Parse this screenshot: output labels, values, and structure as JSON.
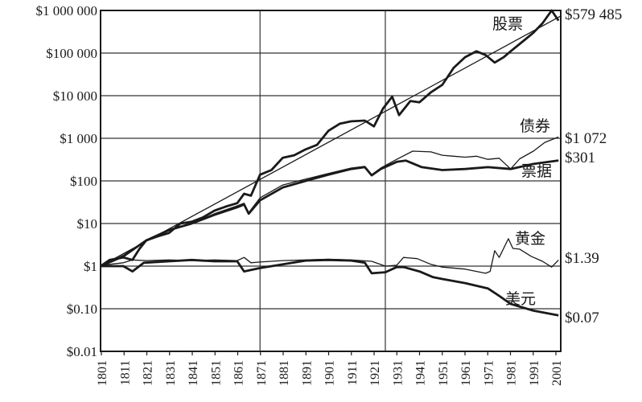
{
  "chart_data": {
    "type": "line",
    "title": "",
    "xlabel": "",
    "ylabel": "",
    "yscale": "log",
    "xlim": [
      1801,
      2003
    ],
    "ylim": [
      0.01,
      1000000
    ],
    "grid": {
      "horizontal": true,
      "vertical_years": [
        1871,
        1926
      ]
    },
    "x_tick_labels": [
      "1801",
      "1811",
      "1821",
      "1831",
      "1841",
      "1851",
      "1861",
      "1871",
      "1881",
      "1891",
      "1901",
      "1911",
      "1921",
      "1931",
      "1941",
      "1951",
      "1961",
      "1971",
      "1981",
      "1991",
      "2001"
    ],
    "y_ticks": [
      {
        "value": 1000000,
        "label": "$1 000 000"
      },
      {
        "value": 100000,
        "label": "$100 000"
      },
      {
        "value": 10000,
        "label": "$10 000"
      },
      {
        "value": 1000,
        "label": "$1 000"
      },
      {
        "value": 100,
        "label": "$100"
      },
      {
        "value": 10,
        "label": "$10"
      },
      {
        "value": 1,
        "label": "$1"
      },
      {
        "value": 0.1,
        "label": "$0.10"
      },
      {
        "value": 0.01,
        "label": "$0.01"
      }
    ],
    "series": [
      {
        "key": "stocks",
        "name": "股票",
        "end_label": "$579 485",
        "style": "thick",
        "points": [
          [
            1801,
            1
          ],
          [
            1805,
            1.4
          ],
          [
            1811,
            1.6
          ],
          [
            1815,
            1.4
          ],
          [
            1818,
            2.5
          ],
          [
            1821,
            4
          ],
          [
            1826,
            5
          ],
          [
            1831,
            6
          ],
          [
            1836,
            10
          ],
          [
            1841,
            11
          ],
          [
            1846,
            14
          ],
          [
            1851,
            20
          ],
          [
            1856,
            25
          ],
          [
            1861,
            30
          ],
          [
            1864,
            50
          ],
          [
            1867,
            45
          ],
          [
            1871,
            140
          ],
          [
            1876,
            180
          ],
          [
            1881,
            350
          ],
          [
            1886,
            400
          ],
          [
            1891,
            550
          ],
          [
            1896,
            700
          ],
          [
            1901,
            1500
          ],
          [
            1906,
            2200
          ],
          [
            1911,
            2500
          ],
          [
            1917,
            2600
          ],
          [
            1921,
            1900
          ],
          [
            1925,
            5000
          ],
          [
            1929,
            9500
          ],
          [
            1932,
            3500
          ],
          [
            1937,
            7500
          ],
          [
            1941,
            7000
          ],
          [
            1946,
            12000
          ],
          [
            1951,
            18000
          ],
          [
            1956,
            45000
          ],
          [
            1961,
            80000
          ],
          [
            1966,
            110000
          ],
          [
            1970,
            90000
          ],
          [
            1974,
            60000
          ],
          [
            1978,
            80000
          ],
          [
            1981,
            110000
          ],
          [
            1987,
            200000
          ],
          [
            1991,
            300000
          ],
          [
            1995,
            500000
          ],
          [
            1999,
            1000000
          ],
          [
            2002,
            579485
          ]
        ]
      },
      {
        "key": "trend",
        "name": "",
        "end_label": "",
        "style": "thin",
        "points": [
          [
            1801,
            1
          ],
          [
            2003,
            740000
          ]
        ]
      },
      {
        "key": "bonds",
        "name": "债券",
        "end_label": "$1 072",
        "style": "thin",
        "points": [
          [
            1801,
            1
          ],
          [
            1811,
            1.8
          ],
          [
            1821,
            4
          ],
          [
            1831,
            7
          ],
          [
            1841,
            10
          ],
          [
            1851,
            17
          ],
          [
            1861,
            26
          ],
          [
            1864,
            30
          ],
          [
            1866,
            18
          ],
          [
            1871,
            40
          ],
          [
            1881,
            80
          ],
          [
            1891,
            110
          ],
          [
            1901,
            150
          ],
          [
            1911,
            200
          ],
          [
            1917,
            220
          ],
          [
            1920,
            140
          ],
          [
            1924,
            200
          ],
          [
            1931,
            320
          ],
          [
            1938,
            500
          ],
          [
            1946,
            480
          ],
          [
            1951,
            400
          ],
          [
            1956,
            380
          ],
          [
            1961,
            360
          ],
          [
            1966,
            380
          ],
          [
            1971,
            320
          ],
          [
            1976,
            340
          ],
          [
            1981,
            190
          ],
          [
            1985,
            330
          ],
          [
            1991,
            500
          ],
          [
            1996,
            800
          ],
          [
            2002,
            1072
          ]
        ]
      },
      {
        "key": "bills",
        "name": "票据",
        "end_label": "$301",
        "style": "thick",
        "points": [
          [
            1801,
            1
          ],
          [
            1811,
            1.7
          ],
          [
            1821,
            4
          ],
          [
            1831,
            7
          ],
          [
            1841,
            10
          ],
          [
            1851,
            16
          ],
          [
            1861,
            24
          ],
          [
            1864,
            28
          ],
          [
            1866,
            17
          ],
          [
            1871,
            35
          ],
          [
            1881,
            70
          ],
          [
            1891,
            100
          ],
          [
            1901,
            140
          ],
          [
            1911,
            190
          ],
          [
            1917,
            210
          ],
          [
            1920,
            135
          ],
          [
            1924,
            190
          ],
          [
            1931,
            280
          ],
          [
            1935,
            300
          ],
          [
            1942,
            210
          ],
          [
            1951,
            180
          ],
          [
            1961,
            190
          ],
          [
            1971,
            210
          ],
          [
            1981,
            190
          ],
          [
            1991,
            250
          ],
          [
            2002,
            301
          ]
        ]
      },
      {
        "key": "gold",
        "name": "黄金",
        "end_label": "$1.39",
        "style": "thin",
        "points": [
          [
            1801,
            1
          ],
          [
            1805,
            1.1
          ],
          [
            1811,
            1.2
          ],
          [
            1815,
            1.4
          ],
          [
            1821,
            1.35
          ],
          [
            1831,
            1.4
          ],
          [
            1841,
            1.35
          ],
          [
            1851,
            1.4
          ],
          [
            1861,
            1.35
          ],
          [
            1864,
            1.6
          ],
          [
            1867,
            1.2
          ],
          [
            1871,
            1.25
          ],
          [
            1881,
            1.35
          ],
          [
            1891,
            1.4
          ],
          [
            1901,
            1.45
          ],
          [
            1911,
            1.4
          ],
          [
            1920,
            1.3
          ],
          [
            1926,
            1.0
          ],
          [
            1931,
            1.05
          ],
          [
            1934,
            1.6
          ],
          [
            1940,
            1.5
          ],
          [
            1946,
            1.1
          ],
          [
            1951,
            0.95
          ],
          [
            1961,
            0.85
          ],
          [
            1970,
            0.68
          ],
          [
            1972,
            0.75
          ],
          [
            1974,
            2.3
          ],
          [
            1976,
            1.6
          ],
          [
            1980,
            4.4
          ],
          [
            1982,
            2.6
          ],
          [
            1985,
            2.5
          ],
          [
            1990,
            1.7
          ],
          [
            1995,
            1.3
          ],
          [
            1999,
            0.95
          ],
          [
            2002,
            1.39
          ]
        ]
      },
      {
        "key": "dollar",
        "name": "美元",
        "end_label": "$0.07",
        "style": "thick",
        "points": [
          [
            1801,
            1
          ],
          [
            1811,
            1.0
          ],
          [
            1815,
            0.75
          ],
          [
            1820,
            1.2
          ],
          [
            1831,
            1.3
          ],
          [
            1841,
            1.4
          ],
          [
            1851,
            1.3
          ],
          [
            1861,
            1.3
          ],
          [
            1864,
            0.75
          ],
          [
            1871,
            0.9
          ],
          [
            1881,
            1.1
          ],
          [
            1891,
            1.35
          ],
          [
            1901,
            1.4
          ],
          [
            1911,
            1.35
          ],
          [
            1917,
            1.2
          ],
          [
            1920,
            0.68
          ],
          [
            1926,
            0.72
          ],
          [
            1931,
            0.95
          ],
          [
            1934,
            0.95
          ],
          [
            1941,
            0.75
          ],
          [
            1947,
            0.55
          ],
          [
            1951,
            0.5
          ],
          [
            1961,
            0.4
          ],
          [
            1971,
            0.3
          ],
          [
            1976,
            0.2
          ],
          [
            1981,
            0.13
          ],
          [
            1991,
            0.09
          ],
          [
            2002,
            0.07
          ]
        ]
      }
    ]
  }
}
